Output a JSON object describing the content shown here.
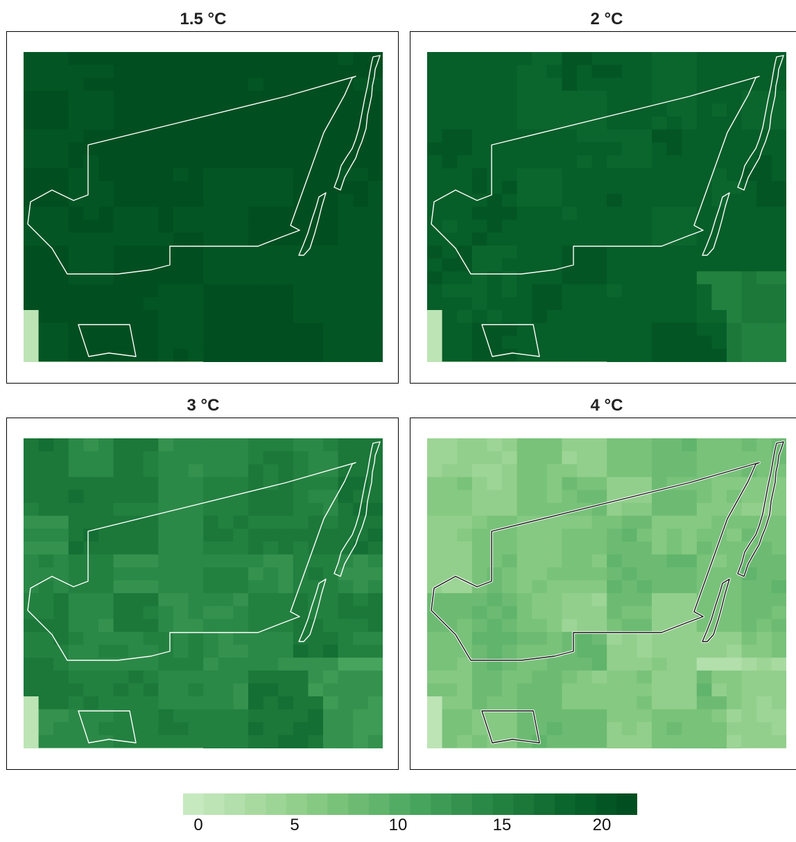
{
  "panels": [
    {
      "title": "1.5 °C",
      "base_value": 21.5,
      "variation": 0.3,
      "coastal_shift": 0.6,
      "boundary_color": "#ffffff"
    },
    {
      "title": "2 °C",
      "base_value": 19.8,
      "variation": 0.9,
      "coastal_shift": 3.5,
      "boundary_color": "#ffffff"
    },
    {
      "title": "3 °C",
      "base_value": 15.5,
      "variation": 1.8,
      "coastal_shift": 4.0,
      "boundary_color": "#ffffff"
    },
    {
      "title": "4 °C",
      "base_value": 6.5,
      "variation": 2.2,
      "coastal_shift": 3.0,
      "boundary_color": "#111111"
    }
  ],
  "colorbar": {
    "min": -1,
    "max": 22.5,
    "ticks": [
      "0",
      "5",
      "10",
      "15",
      "20"
    ],
    "colors": [
      "#c7e9c0",
      "#bde4b5",
      "#b2dfab",
      "#a8daa0",
      "#9dd596",
      "#92cf8c",
      "#86c983",
      "#79c27a",
      "#6dbb73",
      "#60b46b",
      "#53ac64",
      "#47a45c",
      "#3d9b55",
      "#34924e",
      "#2b8947",
      "#238140",
      "#1b7839",
      "#136f33",
      "#0b662d",
      "#065e28",
      "#035624",
      "#014f20"
    ]
  }
}
